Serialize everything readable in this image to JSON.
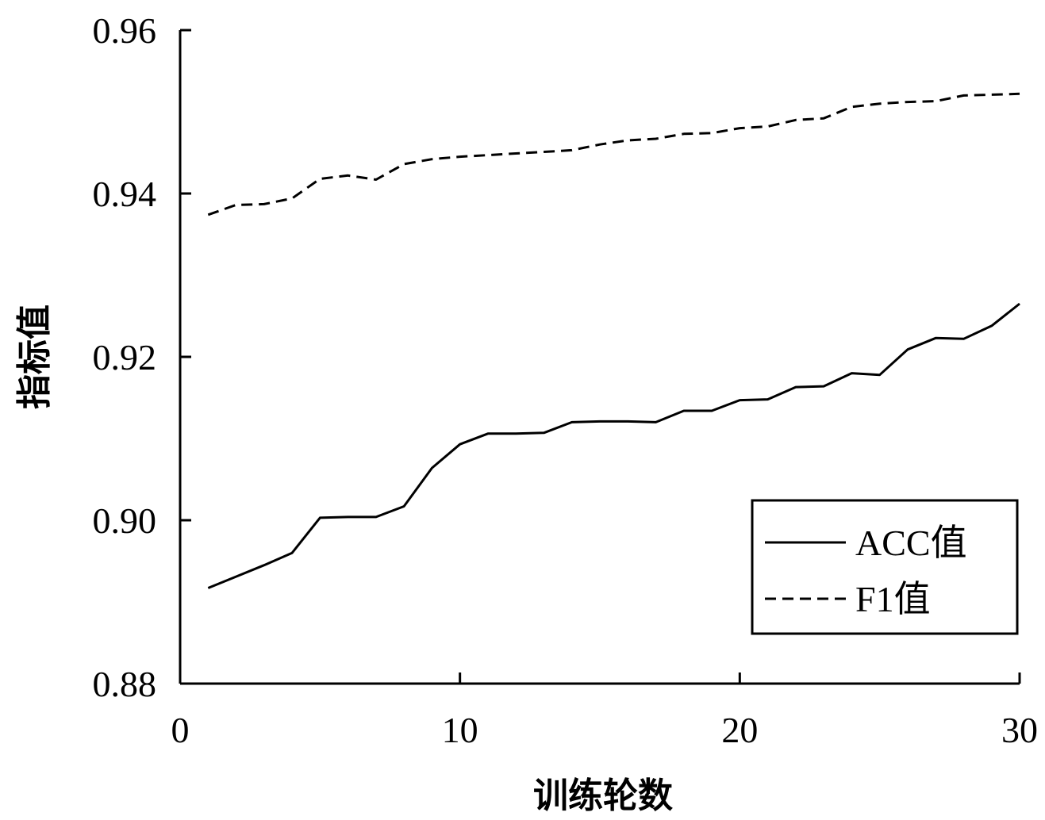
{
  "chart_data": {
    "type": "line",
    "xlabel": "训练轮数",
    "ylabel": "指标值",
    "xlim": [
      0,
      30
    ],
    "ylim": [
      0.88,
      0.96
    ],
    "x_ticks": [
      0,
      10,
      20,
      30
    ],
    "y_ticks": [
      0.88,
      0.9,
      0.92,
      0.94,
      0.96
    ],
    "x_tick_labels": [
      "0",
      "10",
      "20",
      "30"
    ],
    "y_tick_labels": [
      "0.88",
      "0.90",
      "0.92",
      "0.94",
      "0.96"
    ],
    "grid": false,
    "legend_position": "bottom-right",
    "x": [
      1,
      2,
      3,
      4,
      5,
      6,
      7,
      8,
      9,
      10,
      11,
      12,
      13,
      14,
      15,
      16,
      17,
      18,
      19,
      20,
      21,
      22,
      23,
      24,
      25,
      26,
      27,
      28,
      29,
      30
    ],
    "series": [
      {
        "name": "ACC值",
        "style": "solid",
        "color": "#000000",
        "values": [
          0.8917,
          0.8931,
          0.8945,
          0.896,
          0.9003,
          0.9004,
          0.9004,
          0.9017,
          0.9064,
          0.9093,
          0.9106,
          0.9106,
          0.9107,
          0.912,
          0.9121,
          0.9121,
          0.912,
          0.9134,
          0.9134,
          0.9147,
          0.9148,
          0.9163,
          0.9164,
          0.918,
          0.9178,
          0.9209,
          0.9223,
          0.9222,
          0.9238,
          0.9265
        ]
      },
      {
        "name": "F1值",
        "style": "dashed",
        "color": "#000000",
        "values": [
          0.9374,
          0.9386,
          0.9387,
          0.9394,
          0.9418,
          0.9422,
          0.9417,
          0.9436,
          0.9442,
          0.9445,
          0.9447,
          0.9449,
          0.9451,
          0.9453,
          0.946,
          0.9465,
          0.9467,
          0.9473,
          0.9474,
          0.948,
          0.9482,
          0.949,
          0.9492,
          0.9506,
          0.951,
          0.9512,
          0.9513,
          0.952,
          0.9521,
          0.9522
        ]
      }
    ]
  }
}
